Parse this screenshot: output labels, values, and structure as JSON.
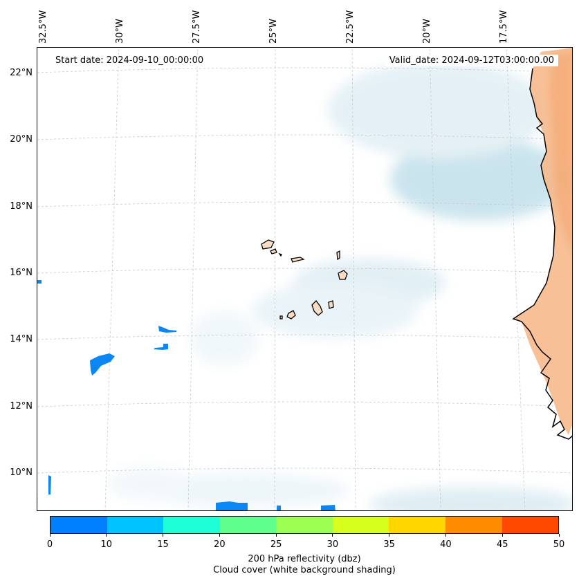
{
  "map": {
    "start_date": "Start date: 2024-09-10_00:00:00",
    "valid_date": "Valid_date: 2024-09-12T03:00:00.00",
    "longitude_labels": [
      "32.5°W",
      "30°W",
      "27.5°W",
      "25°W",
      "22.5°W",
      "20°W",
      "17.5°W"
    ],
    "latitude_labels": [
      "22°N",
      "20°N",
      "18°N",
      "16°N",
      "14°N",
      "12°N",
      "10°N"
    ],
    "extent": {
      "lon_min": -32.7,
      "lon_max": -15.5,
      "lat_min": 8.9,
      "lat_max": 22.8
    },
    "colors": {
      "land": "#f6b98c",
      "cloud": "#cfe6ee",
      "reflectivity_low": "#0a86f5",
      "coastline": "#000000",
      "gridline": "#c8c8c8"
    }
  },
  "colorbar": {
    "ticks": [
      "0",
      "10",
      "15",
      "20",
      "25",
      "30",
      "35",
      "40",
      "45",
      "50"
    ],
    "colors": [
      "#0080ff",
      "#00c4ff",
      "#1effd8",
      "#5eff8c",
      "#9aff50",
      "#d6ff1e",
      "#ffd700",
      "#ff8c00",
      "#ff4800"
    ],
    "label": "200 hPa reflectivity (dbz)",
    "sublabel": "Cloud cover (white background shading)"
  }
}
